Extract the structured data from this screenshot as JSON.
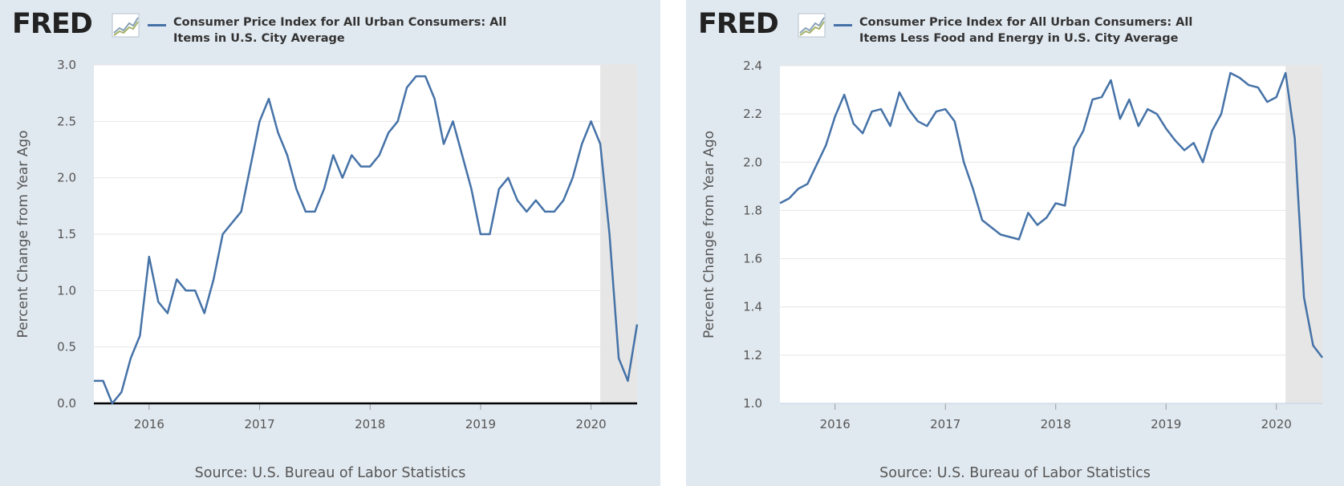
{
  "left": {
    "logo": "FRED",
    "legend": "Consumer Price Index for All Urban Consumers: All Items in U.S. City Average",
    "source": "Source: U.S. Bureau of Labor Statistics"
  },
  "right": {
    "logo": "FRED",
    "legend": "Consumer Price Index for All Urban Consumers: All Items Less Food and Energy in U.S. City Average",
    "source": "Source: U.S. Bureau of Labor Statistics"
  },
  "colors": {
    "series": "#4572a7",
    "background": "#e1e9f0",
    "plot": "#ffffff",
    "recession": "#e6e6e6",
    "grid": "#e6e6e6"
  },
  "chart_data": [
    {
      "type": "line",
      "ylabel": "Percent Change from Year Ago",
      "xlim": [
        "2015-07",
        "2020-06"
      ],
      "ylim": [
        0,
        3
      ],
      "yticks": [
        "0.0",
        "0.5",
        "1.0",
        "1.5",
        "2.0",
        "2.5",
        "3.0"
      ],
      "xticks": [
        "2016",
        "2017",
        "2018",
        "2019",
        "2020"
      ],
      "recession": [
        "2020-02",
        "2020-06"
      ],
      "zero_line": true,
      "series": [
        {
          "x": [
            "2015-07",
            "2015-08",
            "2015-09",
            "2015-10",
            "2015-11",
            "2015-12",
            "2016-01",
            "2016-02",
            "2016-03",
            "2016-04",
            "2016-05",
            "2016-06",
            "2016-07",
            "2016-08",
            "2016-09",
            "2016-10",
            "2016-11",
            "2016-12",
            "2017-01",
            "2017-02",
            "2017-03",
            "2017-04",
            "2017-05",
            "2017-06",
            "2017-07",
            "2017-08",
            "2017-09",
            "2017-10",
            "2017-11",
            "2017-12",
            "2018-01",
            "2018-02",
            "2018-03",
            "2018-04",
            "2018-05",
            "2018-06",
            "2018-07",
            "2018-08",
            "2018-09",
            "2018-10",
            "2018-11",
            "2018-12",
            "2019-01",
            "2019-02",
            "2019-03",
            "2019-04",
            "2019-05",
            "2019-06",
            "2019-07",
            "2019-08",
            "2019-09",
            "2019-10",
            "2019-11",
            "2019-12",
            "2020-01",
            "2020-02",
            "2020-03",
            "2020-04",
            "2020-05",
            "2020-06"
          ],
          "values": [
            0.2,
            0.2,
            0.0,
            0.1,
            0.4,
            0.6,
            1.3,
            0.9,
            0.8,
            1.1,
            1.0,
            1.0,
            0.8,
            1.1,
            1.5,
            1.6,
            1.7,
            2.1,
            2.5,
            2.7,
            2.4,
            2.2,
            1.9,
            1.7,
            1.7,
            1.9,
            2.2,
            2.0,
            2.2,
            2.1,
            2.1,
            2.2,
            2.4,
            2.5,
            2.8,
            2.9,
            2.9,
            2.7,
            2.3,
            2.5,
            2.2,
            1.9,
            1.5,
            1.5,
            1.9,
            2.0,
            1.8,
            1.7,
            1.8,
            1.7,
            1.7,
            1.8,
            2.0,
            2.3,
            2.5,
            2.3,
            1.5,
            0.4,
            0.2,
            0.7
          ]
        }
      ]
    },
    {
      "type": "line",
      "ylabel": "Percent Change from Year Ago",
      "xlim": [
        "2015-07",
        "2020-06"
      ],
      "ylim": [
        1.0,
        2.4
      ],
      "yticks": [
        "1.0",
        "1.2",
        "1.4",
        "1.6",
        "1.8",
        "2.0",
        "2.2",
        "2.4"
      ],
      "xticks": [
        "2016",
        "2017",
        "2018",
        "2019",
        "2020"
      ],
      "recession": [
        "2020-02",
        "2020-06"
      ],
      "zero_line": false,
      "series": [
        {
          "x": [
            "2015-07",
            "2015-08",
            "2015-09",
            "2015-10",
            "2015-11",
            "2015-12",
            "2016-01",
            "2016-02",
            "2016-03",
            "2016-04",
            "2016-05",
            "2016-06",
            "2016-07",
            "2016-08",
            "2016-09",
            "2016-10",
            "2016-11",
            "2016-12",
            "2017-01",
            "2017-02",
            "2017-03",
            "2017-04",
            "2017-05",
            "2017-06",
            "2017-07",
            "2017-08",
            "2017-09",
            "2017-10",
            "2017-11",
            "2017-12",
            "2018-01",
            "2018-02",
            "2018-03",
            "2018-04",
            "2018-05",
            "2018-06",
            "2018-07",
            "2018-08",
            "2018-09",
            "2018-10",
            "2018-11",
            "2018-12",
            "2019-01",
            "2019-02",
            "2019-03",
            "2019-04",
            "2019-05",
            "2019-06",
            "2019-07",
            "2019-08",
            "2019-09",
            "2019-10",
            "2019-11",
            "2019-12",
            "2020-01",
            "2020-02",
            "2020-03",
            "2020-04",
            "2020-05",
            "2020-06"
          ],
          "values": [
            1.83,
            1.85,
            1.89,
            1.91,
            1.99,
            2.07,
            2.19,
            2.28,
            2.16,
            2.12,
            2.21,
            2.22,
            2.15,
            2.29,
            2.22,
            2.17,
            2.15,
            2.21,
            2.22,
            2.17,
            2.0,
            1.89,
            1.76,
            1.73,
            1.7,
            1.69,
            1.68,
            1.79,
            1.74,
            1.77,
            1.83,
            1.82,
            2.06,
            2.13,
            2.26,
            2.27,
            2.34,
            2.18,
            2.26,
            2.15,
            2.22,
            2.2,
            2.14,
            2.09,
            2.05,
            2.08,
            2.0,
            2.13,
            2.2,
            2.37,
            2.35,
            2.32,
            2.31,
            2.25,
            2.27,
            2.37,
            2.1,
            1.44,
            1.24,
            1.19
          ]
        }
      ]
    }
  ]
}
